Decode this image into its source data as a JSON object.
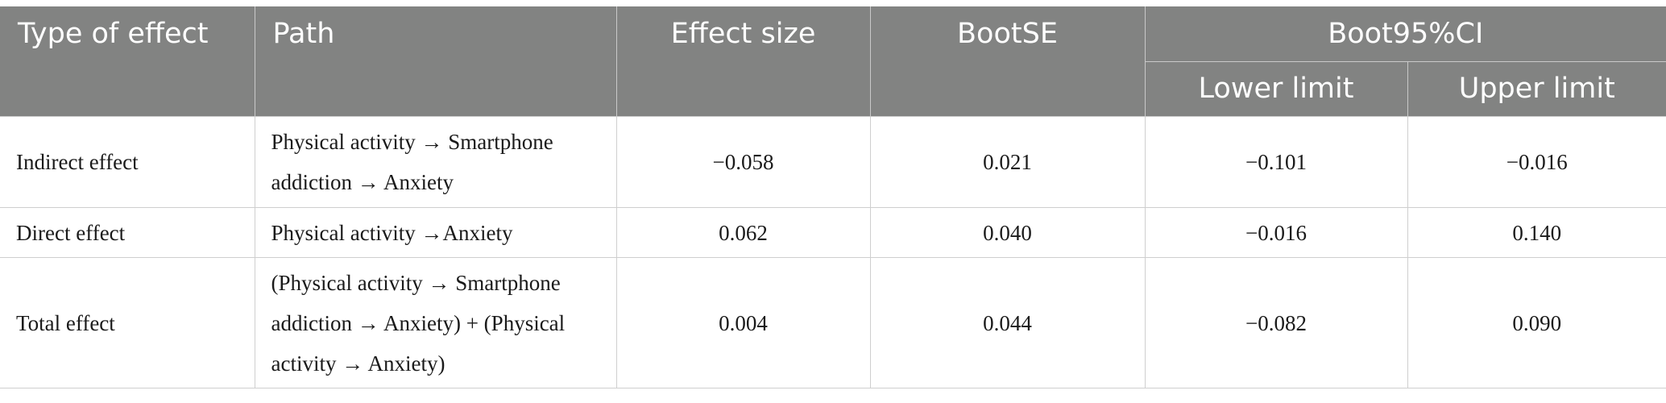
{
  "table": {
    "headers": {
      "type_of_effect": "Type of effect",
      "path": "Path",
      "effect_size": "Effect size",
      "boot_se": "BootSE",
      "boot_ci": "Boot95%CI",
      "lower_limit": "Lower limit",
      "upper_limit": "Upper limit"
    },
    "rows": [
      {
        "type": "Indirect effect",
        "path": "Physical activity → Smartphone addiction → Anxiety",
        "effect_size": "−0.058",
        "boot_se": "0.021",
        "lower": "−0.101",
        "upper": "−0.016"
      },
      {
        "type": "Direct effect",
        "path": "Physical activity →Anxiety",
        "effect_size": "0.062",
        "boot_se": "0.040",
        "lower": "−0.016",
        "upper": "0.140"
      },
      {
        "type": "Total effect",
        "path": "(Physical activity → Smartphone addiction → Anxiety) + (Physical activity → Anxiety)",
        "effect_size": "0.004",
        "boot_se": "0.044",
        "lower": "−0.082",
        "upper": "0.090"
      }
    ]
  }
}
